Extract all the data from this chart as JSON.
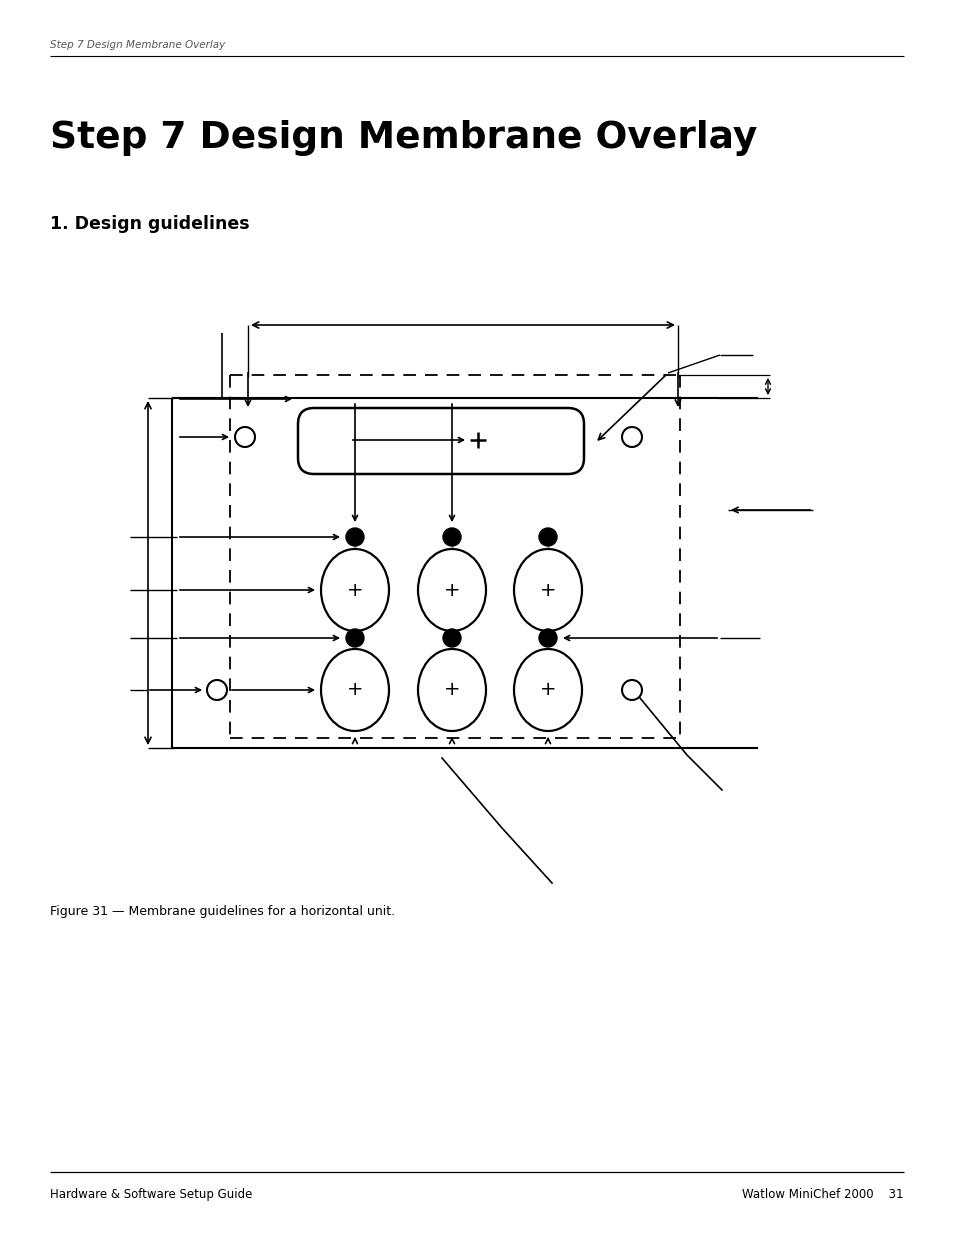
{
  "page_header": "Step 7 Design Membrane Overlay",
  "page_title": "Step 7 Design Membrane Overlay",
  "section_title": "1. Design guidelines",
  "figure_caption": "Figure 31 — Membrane guidelines for a horizontal unit.",
  "footer_left": "Hardware & Software Setup Guide",
  "footer_right": "Watlow MiniChef 2000    31",
  "bg_color": "#ffffff",
  "text_color": "#000000"
}
